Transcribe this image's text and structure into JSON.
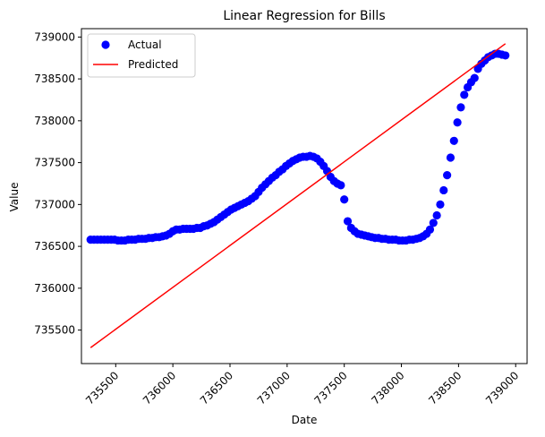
{
  "chart_data": {
    "type": "scatter",
    "title": "Linear Regression for Bills",
    "xlabel": "Date",
    "ylabel": "Value",
    "xlim": [
      735200,
      739100
    ],
    "ylim": [
      735100,
      739100
    ],
    "xticks": [
      735500,
      736000,
      736500,
      737000,
      737500,
      738000,
      738500,
      739000
    ],
    "yticks": [
      735500,
      736000,
      736500,
      737000,
      737500,
      738000,
      738500,
      739000
    ],
    "grid": false,
    "legend": {
      "placement": "top-left",
      "entries": [
        "Actual",
        "Predicted"
      ]
    },
    "series": [
      {
        "name": "Actual",
        "kind": "scatter",
        "color": "#0000ff",
        "x": [
          735280,
          735310,
          735340,
          735370,
          735400,
          735430,
          735460,
          735490,
          735520,
          735550,
          735580,
          735610,
          735640,
          735670,
          735700,
          735730,
          735760,
          735790,
          735820,
          735850,
          735880,
          735910,
          735940,
          735970,
          736000,
          736030,
          736060,
          736090,
          736120,
          736150,
          736180,
          736210,
          736240,
          736270,
          736300,
          736330,
          736360,
          736390,
          736420,
          736450,
          736480,
          736510,
          736540,
          736570,
          736600,
          736630,
          736660,
          736690,
          736720,
          736750,
          736780,
          736810,
          736840,
          736870,
          736900,
          736930,
          736960,
          736990,
          737020,
          737050,
          737080,
          737110,
          737140,
          737170,
          737200,
          737230,
          737260,
          737290,
          737320,
          737350,
          737380,
          737410,
          737440,
          737470,
          737500,
          737530,
          737560,
          737590,
          737620,
          737650,
          737680,
          737710,
          737740,
          737770,
          737800,
          737830,
          737860,
          737890,
          737920,
          737950,
          737980,
          738010,
          738040,
          738070,
          738100,
          738130,
          738160,
          738190,
          738220,
          738250,
          738280,
          738310,
          738340,
          738370,
          738400,
          738430,
          738460,
          738490,
          738520,
          738550,
          738580,
          738610,
          738640,
          738670,
          738700,
          738730,
          738760,
          738790,
          738820,
          738850,
          738880,
          738910
        ],
        "y": [
          736580,
          736580,
          736580,
          736580,
          736580,
          736580,
          736580,
          736580,
          736570,
          736570,
          736570,
          736580,
          736580,
          736580,
          736590,
          736590,
          736590,
          736600,
          736600,
          736610,
          736610,
          736620,
          736630,
          736650,
          736680,
          736700,
          736700,
          736710,
          736710,
          736710,
          736710,
          736720,
          736720,
          736740,
          736750,
          736770,
          736790,
          736820,
          736850,
          736880,
          736910,
          736940,
          736960,
          736980,
          737000,
          737020,
          737040,
          737070,
          737100,
          737150,
          737200,
          737240,
          737280,
          737320,
          737350,
          737390,
          737420,
          737460,
          737490,
          737520,
          737540,
          737560,
          737570,
          737570,
          737580,
          737570,
          737550,
          737510,
          737460,
          737400,
          737330,
          737280,
          737250,
          737230,
          737060,
          736800,
          736720,
          736680,
          736650,
          736640,
          736630,
          736620,
          736610,
          736600,
          736600,
          736590,
          736590,
          736580,
          736580,
          736580,
          736570,
          736570,
          736570,
          736580,
          736580,
          736590,
          736600,
          736620,
          736650,
          736700,
          736780,
          736870,
          737000,
          737170,
          737350,
          737560,
          737760,
          737980,
          738160,
          738310,
          738400,
          738460,
          738510,
          738620,
          738680,
          738720,
          738760,
          738780,
          738800,
          738800,
          738790,
          738780
        ]
      },
      {
        "name": "Predicted",
        "kind": "line",
        "color": "#ff0000",
        "x": [
          735280,
          738910
        ],
        "y": [
          735290,
          738920
        ]
      }
    ]
  }
}
